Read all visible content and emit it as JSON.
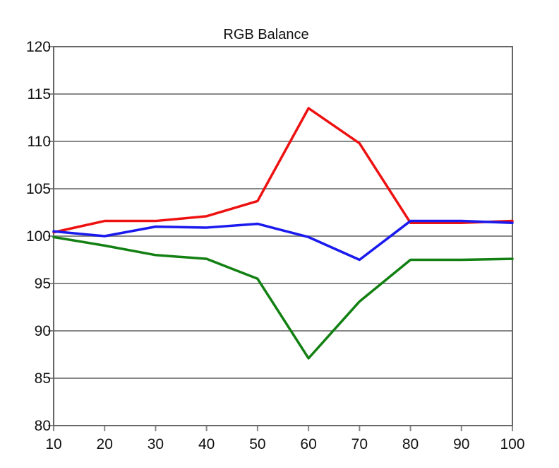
{
  "chart_data": {
    "type": "line",
    "title": "RGB Balance",
    "x": [
      10,
      20,
      30,
      40,
      50,
      60,
      70,
      80,
      90,
      100
    ],
    "xticks": [
      "10",
      "20",
      "30",
      "40",
      "50",
      "60",
      "70",
      "80",
      "90",
      "100"
    ],
    "yticks": [
      "80",
      "85",
      "90",
      "95",
      "100",
      "105",
      "110",
      "115",
      "120"
    ],
    "xlim": [
      10,
      100
    ],
    "ylim": [
      80,
      120
    ],
    "grid": "horizontal",
    "legend": "none",
    "series": [
      {
        "color": "#ee1111",
        "values": [
          100.4,
          101.6,
          101.6,
          102.1,
          103.7,
          113.5,
          109.8,
          101.4,
          101.4,
          101.6
        ]
      },
      {
        "color": "#1a1aee",
        "values": [
          100.5,
          100.0,
          101.0,
          100.9,
          101.3,
          99.9,
          97.5,
          101.6,
          101.6,
          101.4
        ]
      },
      {
        "color": "#128012",
        "values": [
          99.9,
          99.0,
          98.0,
          97.6,
          95.5,
          87.1,
          93.1,
          97.5,
          97.5,
          97.6
        ]
      }
    ]
  }
}
